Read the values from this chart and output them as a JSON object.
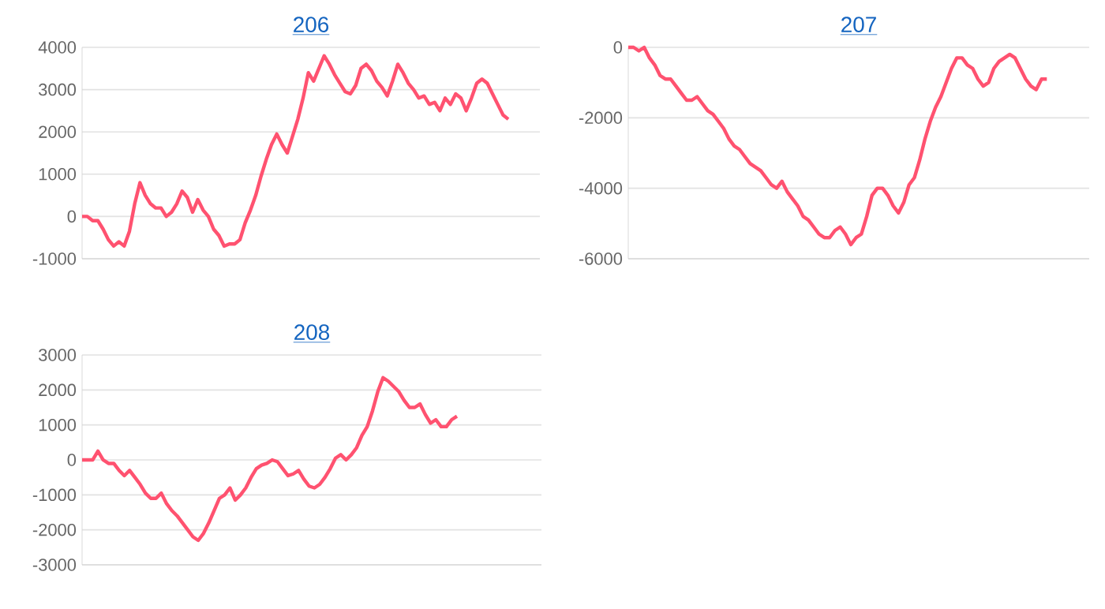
{
  "chart_data": [
    {
      "type": "line",
      "title": "206",
      "categories": [
        null,
        null,
        null,
        null,
        null,
        null,
        null,
        null,
        null,
        null,
        null,
        null,
        null,
        null,
        null,
        null,
        null,
        null,
        null,
        null,
        null,
        null,
        null,
        null,
        null,
        null,
        null,
        null,
        null,
        null,
        null,
        null,
        null,
        null,
        null,
        null,
        null,
        null,
        null,
        null,
        null,
        null,
        null,
        null,
        null,
        null,
        null,
        null,
        null,
        null,
        null,
        null,
        null,
        null,
        null,
        null,
        null,
        null,
        null,
        null,
        null,
        null,
        null,
        null,
        null,
        null,
        null,
        null,
        null,
        null,
        null,
        null,
        null,
        null,
        null,
        null,
        null,
        null,
        null,
        null,
        null,
        null,
        null,
        null,
        null,
        null,
        null,
        null
      ],
      "series": [
        {
          "color": "#ff5270",
          "values": [
            0,
            0,
            -100,
            -100,
            -300,
            -550,
            -700,
            -600,
            -700,
            -350,
            300,
            800,
            500,
            300,
            200,
            200,
            0,
            100,
            300,
            600,
            450,
            100,
            400,
            150,
            0,
            -300,
            -450,
            -700,
            -650,
            -650,
            -550,
            -150,
            150,
            500,
            950,
            1350,
            1700,
            1950,
            1700,
            1500,
            1900,
            2300,
            2800,
            3400,
            3200,
            3500,
            3800,
            3600,
            3350,
            3150,
            2950,
            2900,
            3100,
            3500,
            3600,
            3450,
            3200,
            3050,
            2850,
            3200,
            3600,
            3400,
            3150,
            3000,
            2800,
            2850,
            2650,
            2700,
            2500,
            2800,
            2650,
            2900,
            2800,
            2500,
            2800,
            3150,
            3250,
            3150,
            2900,
            2650,
            2400,
            2300,
            null,
            null,
            null,
            null,
            null,
            null
          ]
        }
      ],
      "ylim": [
        -1000,
        4000
      ],
      "yticks": [
        -1000,
        0,
        1000,
        2000,
        3000,
        4000
      ],
      "grid": "y",
      "tick_labels": "y"
    },
    {
      "type": "line",
      "title": "207",
      "categories": [
        null,
        null,
        null,
        null,
        null,
        null,
        null,
        null,
        null,
        null,
        null,
        null,
        null,
        null,
        null,
        null,
        null,
        null,
        null,
        null,
        null,
        null,
        null,
        null,
        null,
        null,
        null,
        null,
        null,
        null,
        null,
        null,
        null,
        null,
        null,
        null,
        null,
        null,
        null,
        null,
        null,
        null,
        null,
        null,
        null,
        null,
        null,
        null,
        null,
        null,
        null,
        null,
        null,
        null,
        null,
        null,
        null,
        null,
        null,
        null,
        null,
        null,
        null,
        null,
        null,
        null,
        null,
        null,
        null,
        null,
        null,
        null,
        null,
        null,
        null,
        null,
        null,
        null,
        null,
        null,
        null,
        null,
        null,
        null,
        null,
        null,
        null,
        null
      ],
      "series": [
        {
          "color": "#ff5270",
          "values": [
            0,
            0,
            -100,
            0,
            -300,
            -500,
            -800,
            -900,
            -900,
            -1100,
            -1300,
            -1500,
            -1500,
            -1400,
            -1600,
            -1800,
            -1900,
            -2100,
            -2300,
            -2600,
            -2800,
            -2900,
            -3100,
            -3300,
            -3400,
            -3500,
            -3700,
            -3900,
            -4000,
            -3800,
            -4100,
            -4300,
            -4500,
            -4800,
            -4900,
            -5100,
            -5300,
            -5400,
            -5400,
            -5200,
            -5100,
            -5300,
            -5600,
            -5400,
            -5300,
            -4800,
            -4200,
            -4000,
            -4000,
            -4200,
            -4500,
            -4700,
            -4400,
            -3900,
            -3700,
            -3200,
            -2600,
            -2100,
            -1700,
            -1400,
            -1000,
            -600,
            -300,
            -300,
            -500,
            -600,
            -900,
            -1100,
            -1000,
            -600,
            -400,
            -300,
            -200,
            -300,
            -600,
            -900,
            -1100,
            -1200,
            -900,
            -900,
            null,
            null,
            null,
            null,
            null,
            null,
            null,
            null
          ]
        }
      ],
      "ylim": [
        -6000,
        0
      ],
      "yticks": [
        -6000,
        -4000,
        -2000,
        0
      ],
      "grid": "y",
      "tick_labels": "y"
    },
    {
      "type": "line",
      "title": "208",
      "categories": [
        null,
        null,
        null,
        null,
        null,
        null,
        null,
        null,
        null,
        null,
        null,
        null,
        null,
        null,
        null,
        null,
        null,
        null,
        null,
        null,
        null,
        null,
        null,
        null,
        null,
        null,
        null,
        null,
        null,
        null,
        null,
        null,
        null,
        null,
        null,
        null,
        null,
        null,
        null,
        null,
        null,
        null,
        null,
        null,
        null,
        null,
        null,
        null,
        null,
        null,
        null,
        null,
        null,
        null,
        null,
        null,
        null,
        null,
        null,
        null,
        null,
        null,
        null,
        null,
        null,
        null,
        null,
        null,
        null,
        null,
        null,
        null,
        null,
        null,
        null,
        null,
        null,
        null,
        null,
        null,
        null,
        null,
        null,
        null,
        null,
        null,
        null,
        null
      ],
      "series": [
        {
          "color": "#ff5270",
          "values": [
            0,
            0,
            0,
            250,
            0,
            -100,
            -100,
            -300,
            -450,
            -300,
            -500,
            -700,
            -950,
            -1100,
            -1100,
            -950,
            -1250,
            -1450,
            -1600,
            -1800,
            -2000,
            -2200,
            -2300,
            -2100,
            -1800,
            -1450,
            -1100,
            -1000,
            -800,
            -1150,
            -1000,
            -800,
            -500,
            -250,
            -150,
            -100,
            0,
            -50,
            -250,
            -450,
            -400,
            -300,
            -550,
            -750,
            -800,
            -700,
            -500,
            -250,
            50,
            150,
            0,
            150,
            350,
            700,
            950,
            1400,
            1950,
            2350,
            2250,
            2100,
            1950,
            1700,
            1500,
            1500,
            1600,
            1300,
            1050,
            1150,
            950,
            950,
            1150,
            1250,
            null,
            null,
            null,
            null,
            null,
            null,
            null,
            null,
            null,
            null,
            null,
            null,
            null,
            null,
            null,
            null
          ]
        }
      ],
      "ylim": [
        -3000,
        3000
      ],
      "yticks": [
        -3000,
        -2000,
        -1000,
        0,
        1000,
        2000,
        3000
      ],
      "grid": "y",
      "tick_labels": "y"
    }
  ]
}
